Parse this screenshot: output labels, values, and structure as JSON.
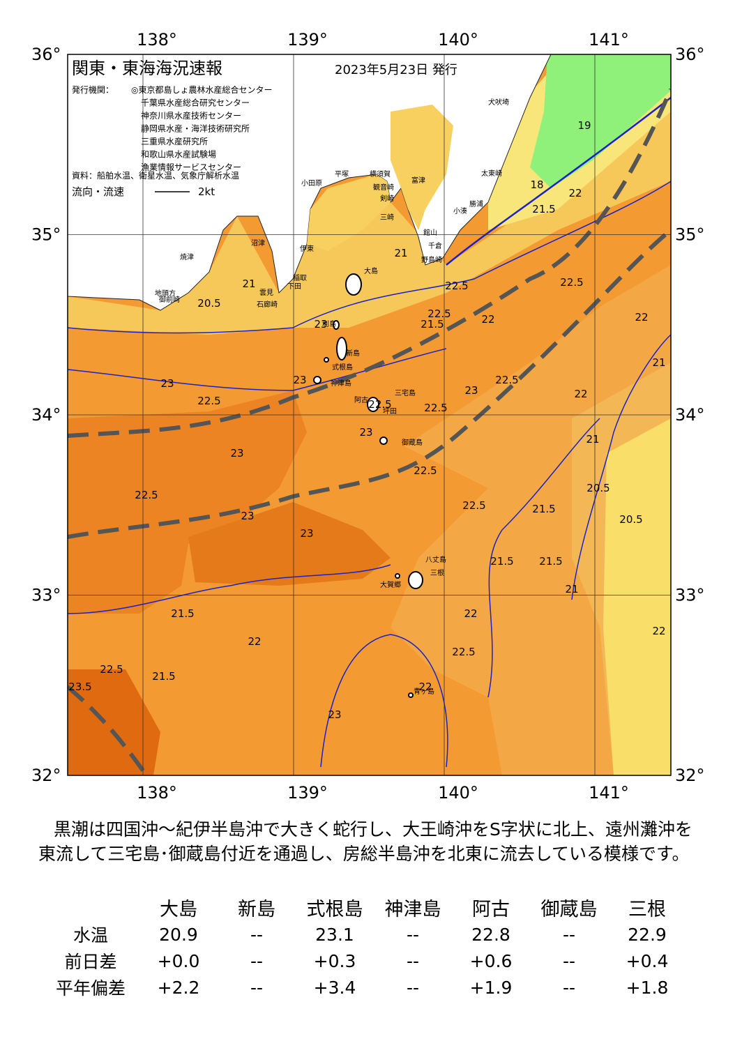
{
  "header": {
    "title": "関東・東海海況速報",
    "date": "2023年5月23日 発行",
    "issuer_label": "発行機関：",
    "issuers": [
      "◎東京都島しょ農林水産総合センター",
      "千葉県水産総合研究センター",
      "神奈川県水産技術センター",
      "静岡県水産・海洋技術研究所",
      "三重県水産研究所",
      "和歌山県水産試験場",
      "漁業情報サービスセンター"
    ],
    "source": "資料：船舶水温、衛星水温、気象庁解析水温",
    "current_legend": "流向・流速",
    "current_scale": "2kt"
  },
  "map": {
    "lon_labels": [
      "138°",
      "139°",
      "140°",
      "141°"
    ],
    "lat_labels": [
      "36°",
      "35°",
      "34°",
      "33°",
      "32°"
    ],
    "places": [
      "大島",
      "利島",
      "新島",
      "式根島",
      "神津島",
      "三宅島",
      "阿古",
      "坪田",
      "御蔵島",
      "八丈島",
      "三根",
      "大賀郷",
      "青ヶ島",
      "小田原",
      "平塚",
      "横須賀",
      "観音崎",
      "富津",
      "剣崎",
      "三崎",
      "館山",
      "千倉",
      "野島崎",
      "小湊",
      "勝浦",
      "太東崎",
      "犬吠埼",
      "伊東",
      "稲取",
      "下田",
      "石廊崎",
      "雲見",
      "沼津",
      "焼津",
      "御前崎",
      "地頭方"
    ],
    "contour_labels": [
      "19",
      "18",
      "22",
      "21",
      "21.5",
      "20.5",
      "21",
      "22.5",
      "22.5",
      "22",
      "22.5",
      "22",
      "21",
      "22.5",
      "22.5",
      "23",
      "22.5",
      "22",
      "23",
      "23",
      "23",
      "22.5",
      "23",
      "23",
      "23",
      "22.5",
      "23",
      "22.5",
      "22.5",
      "21.5",
      "21.5",
      "21.5",
      "21.5",
      "21",
      "21",
      "20.5",
      "20.5",
      "22",
      "22",
      "22.5",
      "22",
      "21.5",
      "21.5",
      "22",
      "23",
      "22.5",
      "23.5"
    ]
  },
  "summary": "黒潮は四国沖～紀伊半島沖で大きく蛇行し、大王崎沖をS字状に北上、遠州灘沖を東流して三宅島･御蔵島付近を通過し、房総半島沖を北東に流去している模様です。",
  "table": {
    "columns": [
      "大島",
      "新島",
      "式根島",
      "神津島",
      "阿古",
      "御蔵島",
      "三根"
    ],
    "rows": [
      {
        "label": "水温",
        "values": [
          "20.9",
          "--",
          "23.1",
          "--",
          "22.8",
          "--",
          "22.9"
        ]
      },
      {
        "label": "前日差",
        "values": [
          "+0.0",
          "--",
          "+0.3",
          "--",
          "+0.6",
          "--",
          "+0.4"
        ]
      },
      {
        "label": "平年偏差",
        "values": [
          "+2.2",
          "--",
          "+3.4",
          "--",
          "+1.9",
          "--",
          "+1.8"
        ]
      }
    ]
  }
}
